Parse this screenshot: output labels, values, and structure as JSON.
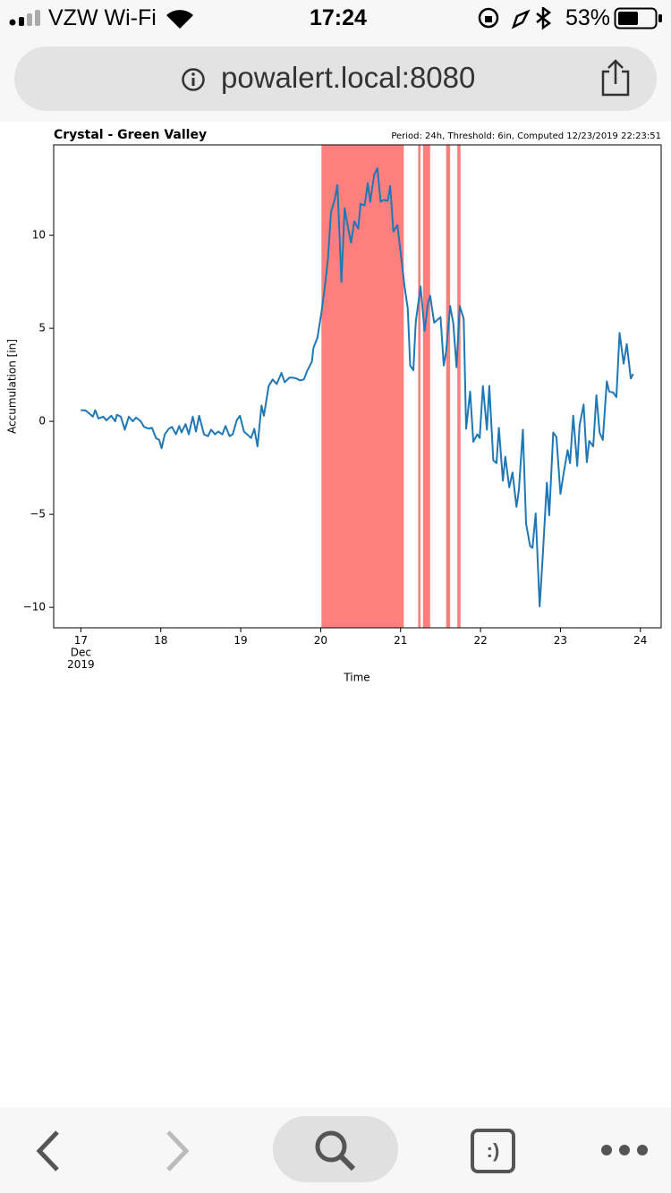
{
  "browser": {
    "carrier": "VZW Wi-Fi",
    "time": "17:24",
    "battery": "53%",
    "url": "powalert.local:8080",
    "tabs_label": ":)"
  },
  "chart_data": {
    "type": "line",
    "title": "Crystal - Green Valley",
    "subtitle": "Period: 24h, Threshold: 6in, Computed 12/23/2019 22:23:51",
    "x_label": "Time",
    "y_label": "Accumulation [in]",
    "color": "#1f77b4",
    "highlight_color": "#ff7f7f",
    "xlim": [
      16.66,
      24.26
    ],
    "ylim": [
      -11.1,
      14.86
    ],
    "xticks": [
      {
        "value": 17,
        "label": "17\nDec\n2019"
      },
      18,
      19,
      20,
      21,
      22,
      23,
      24
    ],
    "yticks": [
      {
        "value": -10,
        "label": "−10"
      },
      {
        "value": -5,
        "label": "−5"
      },
      0,
      5,
      10
    ],
    "highlights": [
      [
        20.01,
        21.04
      ],
      [
        21.22,
        21.25
      ],
      [
        21.28,
        21.37
      ],
      [
        21.57,
        21.62
      ],
      [
        21.71,
        21.75
      ]
    ],
    "x": [
      17.0,
      17.06,
      17.11,
      17.15,
      17.18,
      17.22,
      17.28,
      17.32,
      17.38,
      17.43,
      17.45,
      17.5,
      17.55,
      17.6,
      17.65,
      17.69,
      17.75,
      17.79,
      17.85,
      17.89,
      17.94,
      17.98,
      18.01,
      18.05,
      18.1,
      18.14,
      18.19,
      18.23,
      18.26,
      18.31,
      18.35,
      18.4,
      18.44,
      18.48,
      18.54,
      18.59,
      18.63,
      18.68,
      18.72,
      18.77,
      18.81,
      18.86,
      18.9,
      18.95,
      18.99,
      19.04,
      19.08,
      19.13,
      19.17,
      19.21,
      19.26,
      19.29,
      19.35,
      19.4,
      19.45,
      19.51,
      19.55,
      19.61,
      19.65,
      19.7,
      19.74,
      19.79,
      19.83,
      19.89,
      19.91,
      19.96,
      20.01,
      20.05,
      20.09,
      20.13,
      20.18,
      20.21,
      20.26,
      20.3,
      20.33,
      20.38,
      20.42,
      20.47,
      20.5,
      20.55,
      20.59,
      20.62,
      20.67,
      20.71,
      20.75,
      20.79,
      20.84,
      20.87,
      20.91,
      20.96,
      21.0,
      21.05,
      21.09,
      21.12,
      21.16,
      21.19,
      21.25,
      21.3,
      21.34,
      21.37,
      21.42,
      21.46,
      21.5,
      21.54,
      21.57,
      21.62,
      21.66,
      21.7,
      21.74,
      21.79,
      21.82,
      21.87,
      21.91,
      21.96,
      21.99,
      22.03,
      22.08,
      22.11,
      22.16,
      22.2,
      22.23,
      22.28,
      22.31,
      22.36,
      22.4,
      22.45,
      22.48,
      22.53,
      22.57,
      22.62,
      22.65,
      22.69,
      22.74,
      22.78,
      22.83,
      22.86,
      22.91,
      22.95,
      23.0,
      23.04,
      23.09,
      23.12,
      23.16,
      23.21,
      23.24,
      23.29,
      23.33,
      23.36,
      23.41,
      23.45,
      23.49,
      23.53,
      23.58,
      23.61,
      23.66,
      23.7,
      23.74,
      23.79,
      23.83,
      23.88,
      23.91
    ],
    "values": [
      0.6,
      0.58,
      0.4,
      0.25,
      0.6,
      0.15,
      0.25,
      0.05,
      0.3,
      0,
      0.35,
      0.25,
      -0.45,
      0.25,
      0,
      0.2,
      0,
      -0.3,
      -0.4,
      -0.35,
      -0.9,
      -1.0,
      -1.45,
      -0.7,
      -0.4,
      -0.3,
      -0.7,
      -0.25,
      -0.6,
      -0.15,
      -0.7,
      0.25,
      -0.55,
      0.3,
      -0.7,
      -0.8,
      -0.45,
      -0.7,
      -0.55,
      -0.7,
      -0.25,
      -0.8,
      -0.7,
      0.05,
      0.3,
      -0.55,
      -0.7,
      -0.9,
      -0.4,
      -1.35,
      0.85,
      0.3,
      1.9,
      2.25,
      2.0,
      2.6,
      2.1,
      2.35,
      2.35,
      2.3,
      2.2,
      2.25,
      2.7,
      3.2,
      3.95,
      4.5,
      5.85,
      7.15,
      8.65,
      11.25,
      12.0,
      12.7,
      7.5,
      11.45,
      10.7,
      9.6,
      10.75,
      10.35,
      11.7,
      11.6,
      12.8,
      11.8,
      13.25,
      13.6,
      11.8,
      11.9,
      11.85,
      12.65,
      10.2,
      10.55,
      9.1,
      7.25,
      6.05,
      3.0,
      2.75,
      5.35,
      7.25,
      4.85,
      6.3,
      6.75,
      5.3,
      5.45,
      5.6,
      3.0,
      3.75,
      6.2,
      5.25,
      2.9,
      6.2,
      5.5,
      -0.4,
      1.6,
      -1.1,
      -0.7,
      -0.9,
      1.9,
      -0.45,
      1.9,
      -2.1,
      -2.25,
      -0.35,
      -3.2,
      -1.9,
      -3.55,
      -2.75,
      -4.6,
      -3.7,
      -0.45,
      -5.5,
      -6.7,
      -6.8,
      -4.95,
      -9.95,
      -7.15,
      -3.3,
      -5.05,
      -0.6,
      -0.85,
      -3.9,
      -2.8,
      -1.55,
      -2.25,
      0.3,
      -2.4,
      -0.2,
      0.9,
      -2.2,
      -1.05,
      -1.35,
      1.4,
      -0.6,
      -1.0,
      2.15,
      1.6,
      1.55,
      1.3,
      4.75,
      3.1,
      4.15,
      2.3,
      2.55
    ]
  }
}
